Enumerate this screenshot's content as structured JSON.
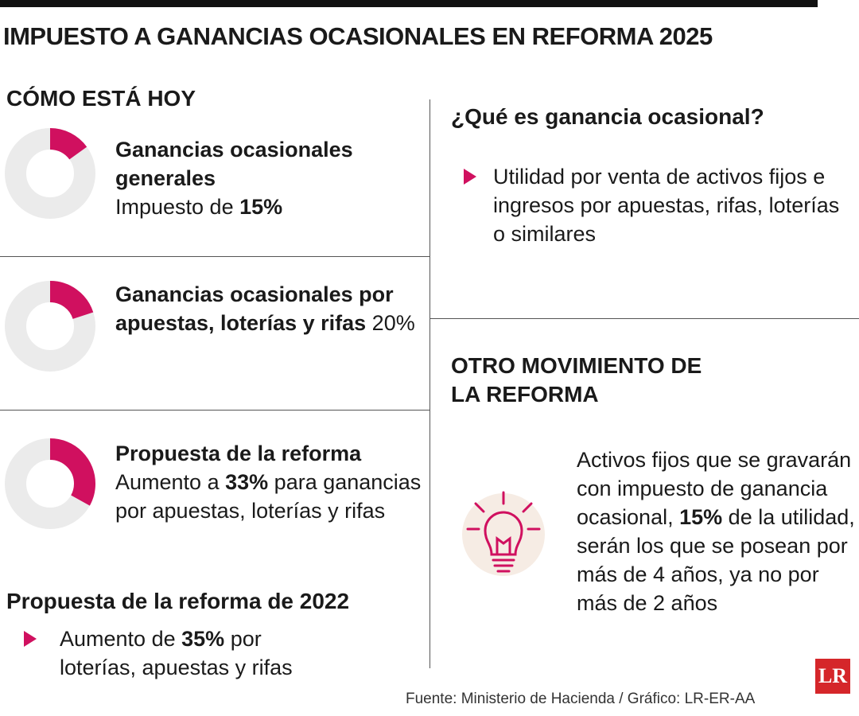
{
  "header": {
    "title": "IMPUESTO A GANANCIAS OCASIONALES EN REFORMA 2025"
  },
  "today": {
    "heading": "CÓMO ESTÁ HOY",
    "items": [
      {
        "title": "Ganancias ocasionales generales",
        "text": "Impuesto de",
        "highlight": "15%",
        "share": 15
      },
      {
        "title": "Ganancias ocasionales por apuestas, loterías y rifas",
        "text_after": "20%",
        "share": 20
      },
      {
        "title": "Propuesta de la reforma",
        "text": "Aumento a",
        "highlight": "33%",
        "text_after": "para ganancias por apuestas, loterías y rifas",
        "share": 33
      }
    ]
  },
  "reform_2022": {
    "heading": "Propuesta de la reforma de 2022",
    "text": "Aumento de",
    "highlight": "35%",
    "text_after": "por loterías, apuestas y rifas"
  },
  "definition": {
    "heading": "¿Qué es ganancia ocasional?",
    "text": "Utilidad por venta de activos fijos e ingresos por apuestas, rifas, loterías o similares"
  },
  "other": {
    "heading": "OTRO MOVIMIENTO DE LA REFORMA",
    "text": "Activos fijos que se gravarán con impuesto de ganancia ocasional,",
    "highlight": "15%",
    "text_after": "de la utilidad, serán los que se posean por más de 4 años, ya no por más de 2 años"
  },
  "footer": {
    "source": "Fuente: Ministerio de Hacienda / Gráfico: LR-ER-AA",
    "logo": "LR"
  }
}
